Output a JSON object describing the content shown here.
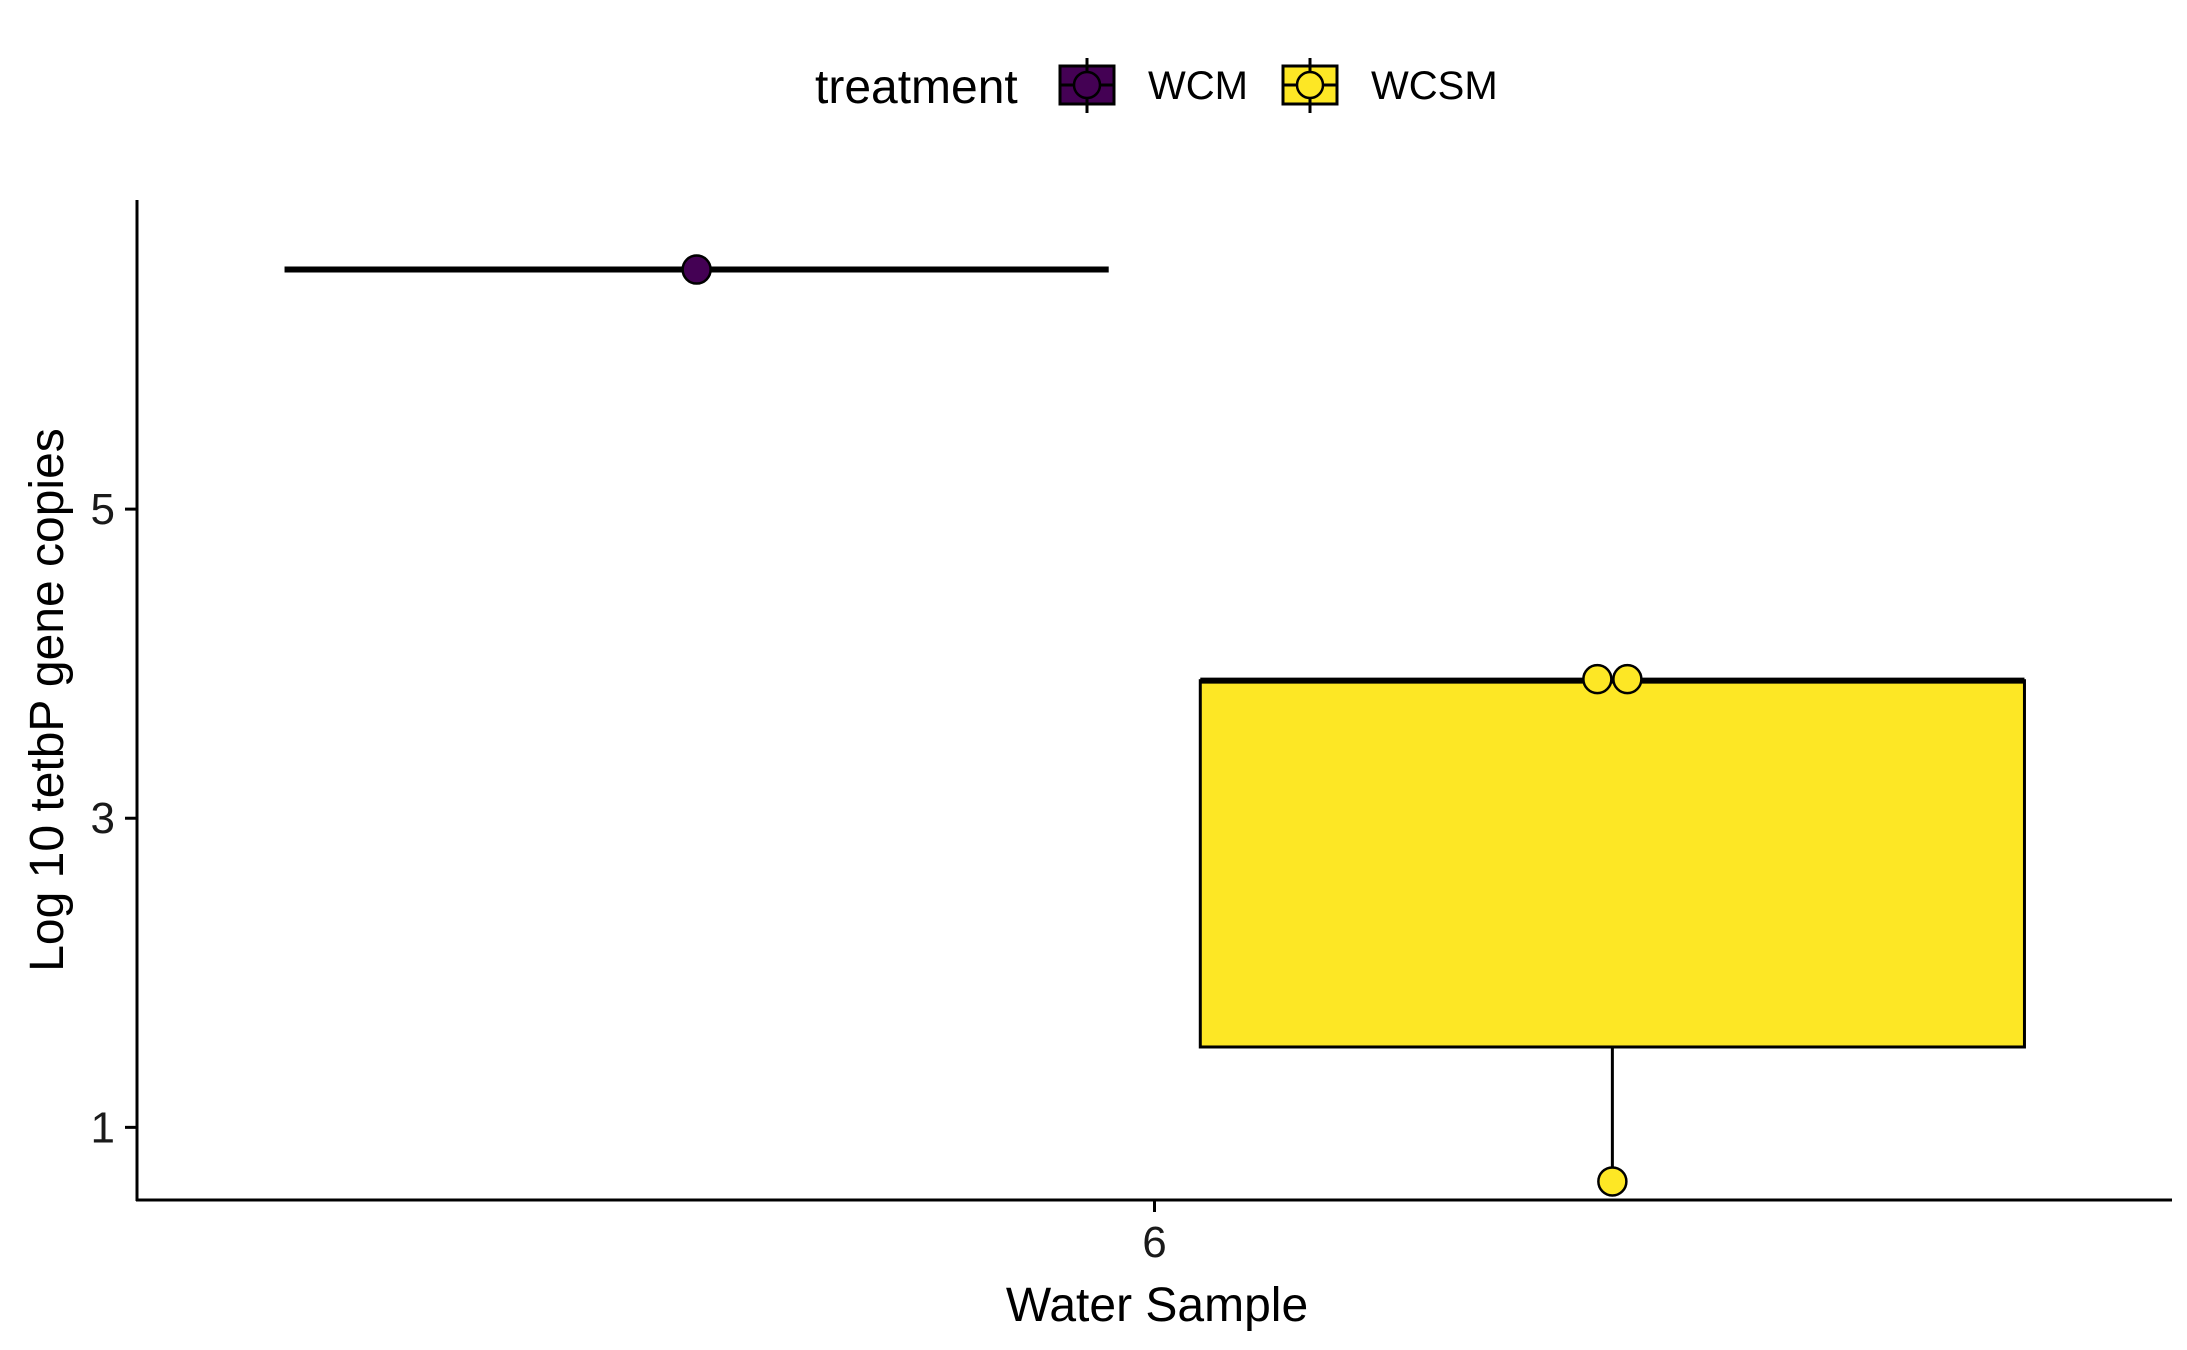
{
  "chart_data": {
    "type": "box",
    "xlabel": "Water Sample",
    "ylabel": "Log 10 tetbP gene copies",
    "categories": [
      "6"
    ],
    "ylim": [
      0.53,
      7.0
    ],
    "yticks": [
      1,
      3,
      5
    ],
    "grid": false,
    "legend": {
      "title": "treatment",
      "position": "top",
      "entries": [
        {
          "name": "WCM",
          "color": "#440154"
        },
        {
          "name": "WCSM",
          "color": "#FDE725"
        }
      ]
    },
    "series": [
      {
        "name": "WCM",
        "color": "#440154",
        "category": "6",
        "box": {
          "min": 6.55,
          "q1": 6.55,
          "median": 6.55,
          "q3": 6.55,
          "max": 6.55
        },
        "points": [
          6.55
        ]
      },
      {
        "name": "WCSM",
        "color": "#FDE725",
        "category": "6",
        "box": {
          "min": 0.65,
          "q1": 1.52,
          "median": 3.89,
          "q3": 3.89,
          "max": 3.89
        },
        "points": [
          3.9,
          3.9,
          0.65
        ]
      }
    ]
  }
}
